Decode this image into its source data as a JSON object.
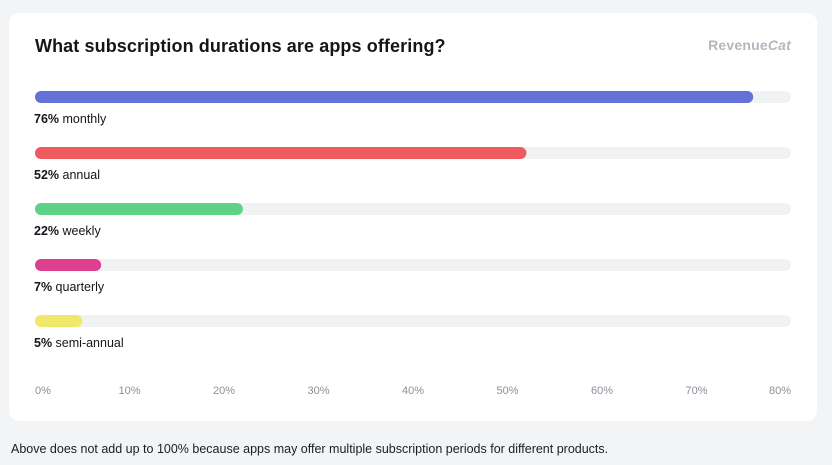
{
  "chart_data": {
    "type": "bar",
    "orientation": "horizontal",
    "title": "What subscription durations are apps offering?",
    "categories": [
      "monthly",
      "annual",
      "weekly",
      "quarterly",
      "semi-annual"
    ],
    "values": [
      76,
      52,
      22,
      7,
      5
    ],
    "value_labels": [
      "76%",
      "52%",
      "22%",
      "7%",
      "5%"
    ],
    "bar_colors": [
      "#6471d6",
      "#ee5a5e",
      "#5fd287",
      "#de3f8f",
      "#f0e86a"
    ],
    "track_color": "#f1f2f3",
    "xlim": [
      0,
      80
    ],
    "xticks": [
      0,
      10,
      20,
      30,
      40,
      50,
      60,
      70,
      80
    ],
    "xtick_labels": [
      "0%",
      "10%",
      "20%",
      "30%",
      "40%",
      "50%",
      "60%",
      "70%",
      "80%"
    ],
    "xlabel": "",
    "ylabel": "",
    "grid": false
  },
  "brand": {
    "name_part1": "Revenue",
    "name_part2": "Cat"
  },
  "footnote": "Above does not add up to 100% because apps may offer multiple subscription periods for different products."
}
